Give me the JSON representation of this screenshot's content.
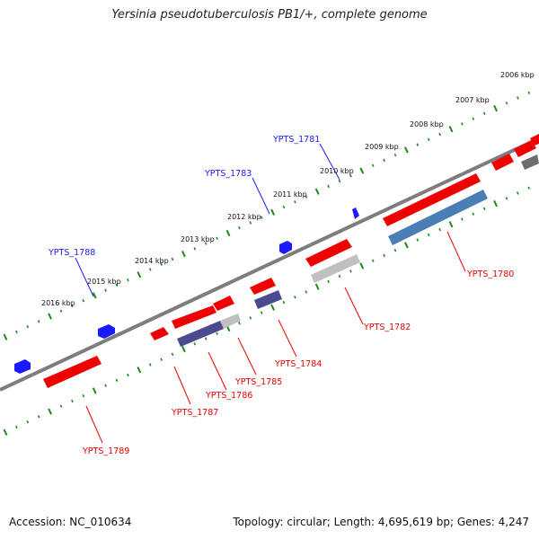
{
  "title": "Yersinia pseudotuberculosis PB1/+, complete genome",
  "footer": {
    "accession": "Accession: NC_010634",
    "summary": "Topology: circular; Length: 4,695,619 bp; Genes: 4,247"
  },
  "colors": {
    "backbone": "#7d7d7d",
    "tick": "#1a8a1a",
    "forward_gene": "#1a1aff",
    "reverse_gene": "#ee0000",
    "blue_feature": "#4a7fb5",
    "purple_feature": "#4a4a8e",
    "gray_feature": "#c0c0c0"
  },
  "kbp_labels": [
    "2006 kbp",
    "2007 kbp",
    "2008 kbp",
    "2009 kbp",
    "2010 kbp",
    "2011 kbp",
    "2012 kbp",
    "2013 kbp",
    "2014 kbp",
    "2015 kbp",
    "2016 kbp"
  ],
  "genes_forward": [
    "YPTS_1781",
    "YPTS_1783",
    "YPTS_1788"
  ],
  "genes_reverse": [
    "YPTS_1780",
    "YPTS_1782",
    "YPTS_1784",
    "YPTS_1785",
    "YPTS_1786",
    "YPTS_1787",
    "YPTS_1789"
  ]
}
